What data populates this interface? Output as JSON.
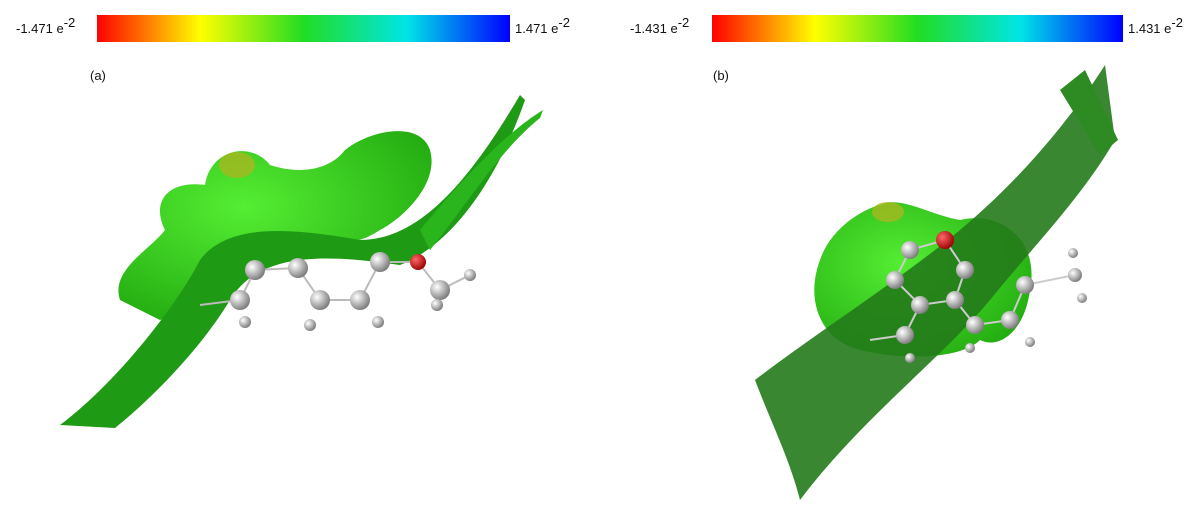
{
  "panels": [
    {
      "label": "(a)",
      "scale_min": {
        "base": "-1.471 e",
        "exponent": "-2"
      },
      "scale_max": {
        "base": "1.471 e",
        "exponent": "-2"
      }
    },
    {
      "label": "(b)",
      "scale_min": {
        "base": "-1.431 e",
        "exponent": "-2"
      },
      "scale_max": {
        "base": "1.431 e",
        "exponent": "-2"
      }
    }
  ]
}
